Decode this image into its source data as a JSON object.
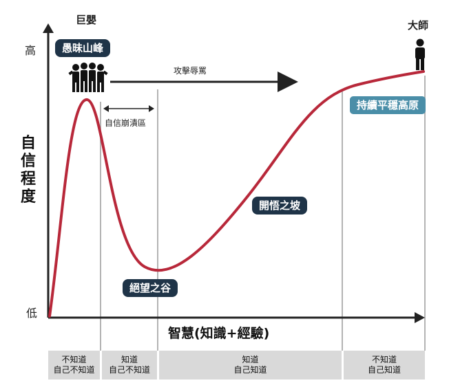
{
  "labels": {
    "giant": "巨嬰",
    "master": "大師",
    "y_high": "高",
    "y_low": "低",
    "y_axis": [
      "自",
      "信",
      "程",
      "度"
    ],
    "x_axis": "智慧(知識+經驗)",
    "attack": "攻擊辱罵",
    "collapse": "自信崩潰區"
  },
  "stages": {
    "peak": "愚昧山峰",
    "valley": "絕望之谷",
    "slope": "開悟之坡",
    "plateau": "持續平穩高原"
  },
  "bands": [
    {
      "line1": "不知道",
      "line2": "自己不知道"
    },
    {
      "line1": "知道",
      "line2": "自己不知道"
    },
    {
      "line1": "知道",
      "line2": "自己知道"
    },
    {
      "line1": "不知道",
      "line2": "自己知道"
    }
  ],
  "colors": {
    "curve": "#b8283a",
    "pill_dark": "#1f3448",
    "pill_teal": "#4a8ea8",
    "band": "#d9d9d9"
  }
}
